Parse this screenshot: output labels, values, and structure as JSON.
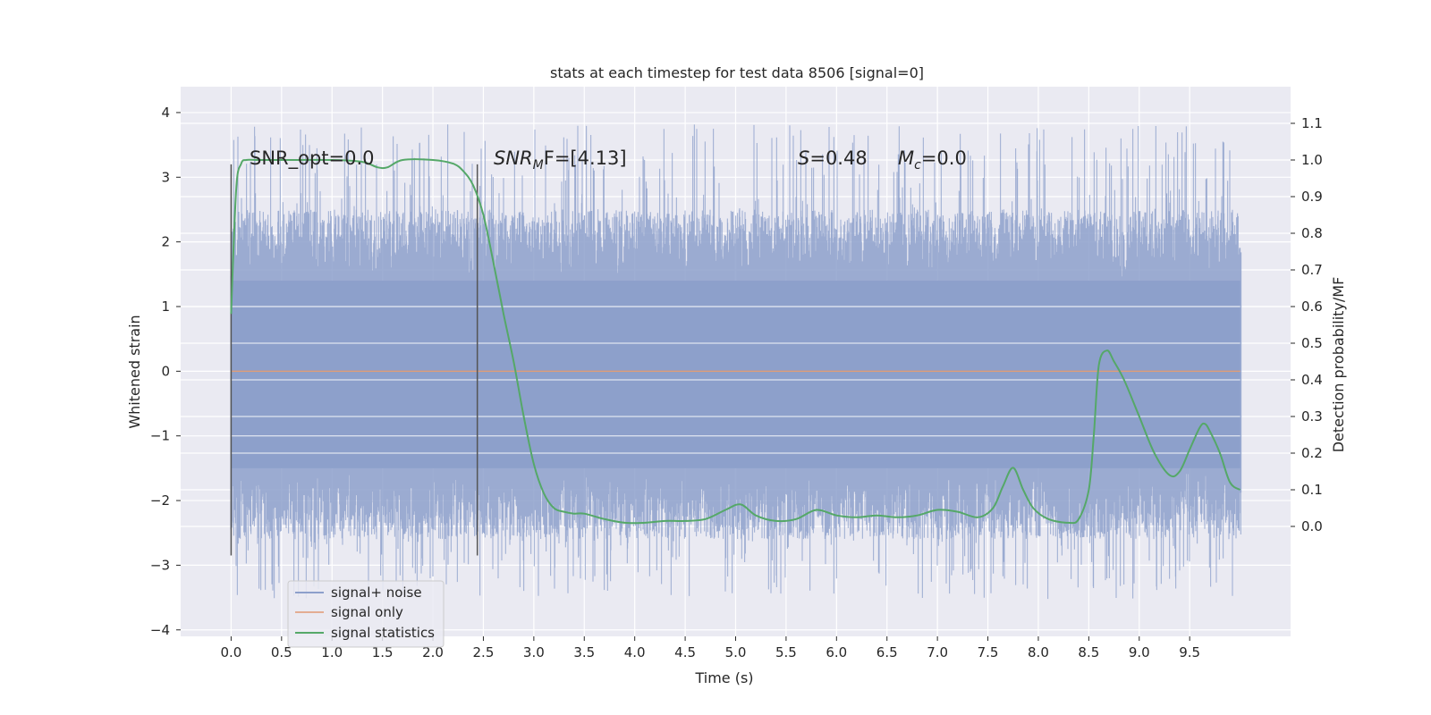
{
  "chart_data": {
    "type": "line",
    "title": "stats at each timestep for test data 8506 [signal=0]",
    "xlabel": "Time (s)",
    "ylabel": "Whitened strain",
    "ylabel_right": "Detection probability/MF",
    "xlim": [
      -0.5,
      10.5
    ],
    "ylim": [
      -4.1,
      4.4
    ],
    "ylim_right": [
      -0.3,
      1.2
    ],
    "xticks": [
      "0.0",
      "0.5",
      "1.0",
      "1.5",
      "2.0",
      "2.5",
      "3.0",
      "3.5",
      "4.0",
      "4.5",
      "5.0",
      "5.5",
      "6.0",
      "6.5",
      "7.0",
      "7.5",
      "8.0",
      "8.5",
      "9.0",
      "9.5"
    ],
    "yticks_left": [
      "4",
      "3",
      "2",
      "1",
      "0",
      "−1",
      "−2",
      "−3",
      "−4"
    ],
    "yticks_right": [
      "1.1",
      "1.0",
      "0.9",
      "0.8",
      "0.7",
      "0.6",
      "0.5",
      "0.4",
      "0.3",
      "0.2",
      "0.1",
      "0.0"
    ],
    "grid": true,
    "legend_position": "lower-left",
    "annotations": {
      "snr_opt": "SNR_opt=0.0",
      "snr_mf_sym": "SNR",
      "snr_mf_sub": "M",
      "snr_mf_rest": "F=[4.13]",
      "s_sym": "S",
      "s_rest": "=0.48",
      "mc_sym": "M",
      "mc_sub": "c",
      "mc_rest": "=0.0"
    },
    "markers": [
      0.0,
      2.44
    ],
    "series": [
      {
        "name": "signal+ noise",
        "axis": "left",
        "color": "#8da0cb",
        "style": "dense-noise",
        "x_range": [
          0.0,
          10.0
        ],
        "core_range": [
          -1.5,
          1.4
        ],
        "typical_extremes": [
          -2.6,
          2.5
        ],
        "peak_extremes": [
          -3.7,
          4.05
        ]
      },
      {
        "name": "signal only",
        "axis": "left",
        "color": "#dd8452",
        "x": [
          0.0,
          10.0
        ],
        "y": [
          0.0,
          0.0
        ]
      },
      {
        "name": "signal statistics",
        "axis": "right",
        "color": "#55a868",
        "x": [
          0.0,
          0.05,
          0.1,
          0.15,
          0.25,
          0.5,
          1.0,
          1.3,
          1.45,
          1.55,
          1.7,
          2.0,
          2.2,
          2.3,
          2.4,
          2.5,
          2.6,
          2.7,
          2.8,
          2.9,
          3.0,
          3.1,
          3.2,
          3.3,
          3.4,
          3.5,
          3.7,
          3.9,
          4.1,
          4.3,
          4.5,
          4.7,
          4.9,
          5.05,
          5.2,
          5.4,
          5.6,
          5.8,
          6.0,
          6.2,
          6.4,
          6.6,
          6.8,
          7.0,
          7.2,
          7.4,
          7.55,
          7.65,
          7.75,
          7.85,
          7.95,
          8.1,
          8.3,
          8.4,
          8.5,
          8.55,
          8.6,
          8.68,
          8.75,
          8.85,
          9.0,
          9.15,
          9.3,
          9.4,
          9.5,
          9.6,
          9.65,
          9.7,
          9.8,
          9.9,
          10.0
        ],
        "y": [
          0.58,
          0.92,
          0.99,
          1.0,
          1.0,
          1.0,
          1.0,
          0.995,
          0.98,
          0.98,
          1.0,
          1.0,
          0.99,
          0.97,
          0.93,
          0.85,
          0.72,
          0.58,
          0.45,
          0.3,
          0.17,
          0.09,
          0.05,
          0.04,
          0.035,
          0.035,
          0.02,
          0.01,
          0.01,
          0.015,
          0.015,
          0.02,
          0.045,
          0.06,
          0.03,
          0.015,
          0.02,
          0.045,
          0.03,
          0.025,
          0.03,
          0.025,
          0.03,
          0.045,
          0.04,
          0.025,
          0.05,
          0.11,
          0.16,
          0.1,
          0.05,
          0.02,
          0.01,
          0.02,
          0.1,
          0.25,
          0.44,
          0.48,
          0.45,
          0.4,
          0.3,
          0.2,
          0.14,
          0.15,
          0.21,
          0.27,
          0.28,
          0.26,
          0.2,
          0.12,
          0.1
        ]
      }
    ]
  },
  "colors": {
    "plot_background": "#eaeaf2",
    "grid": "#ffffff",
    "marker_line": "#555555",
    "text": "#262626"
  }
}
